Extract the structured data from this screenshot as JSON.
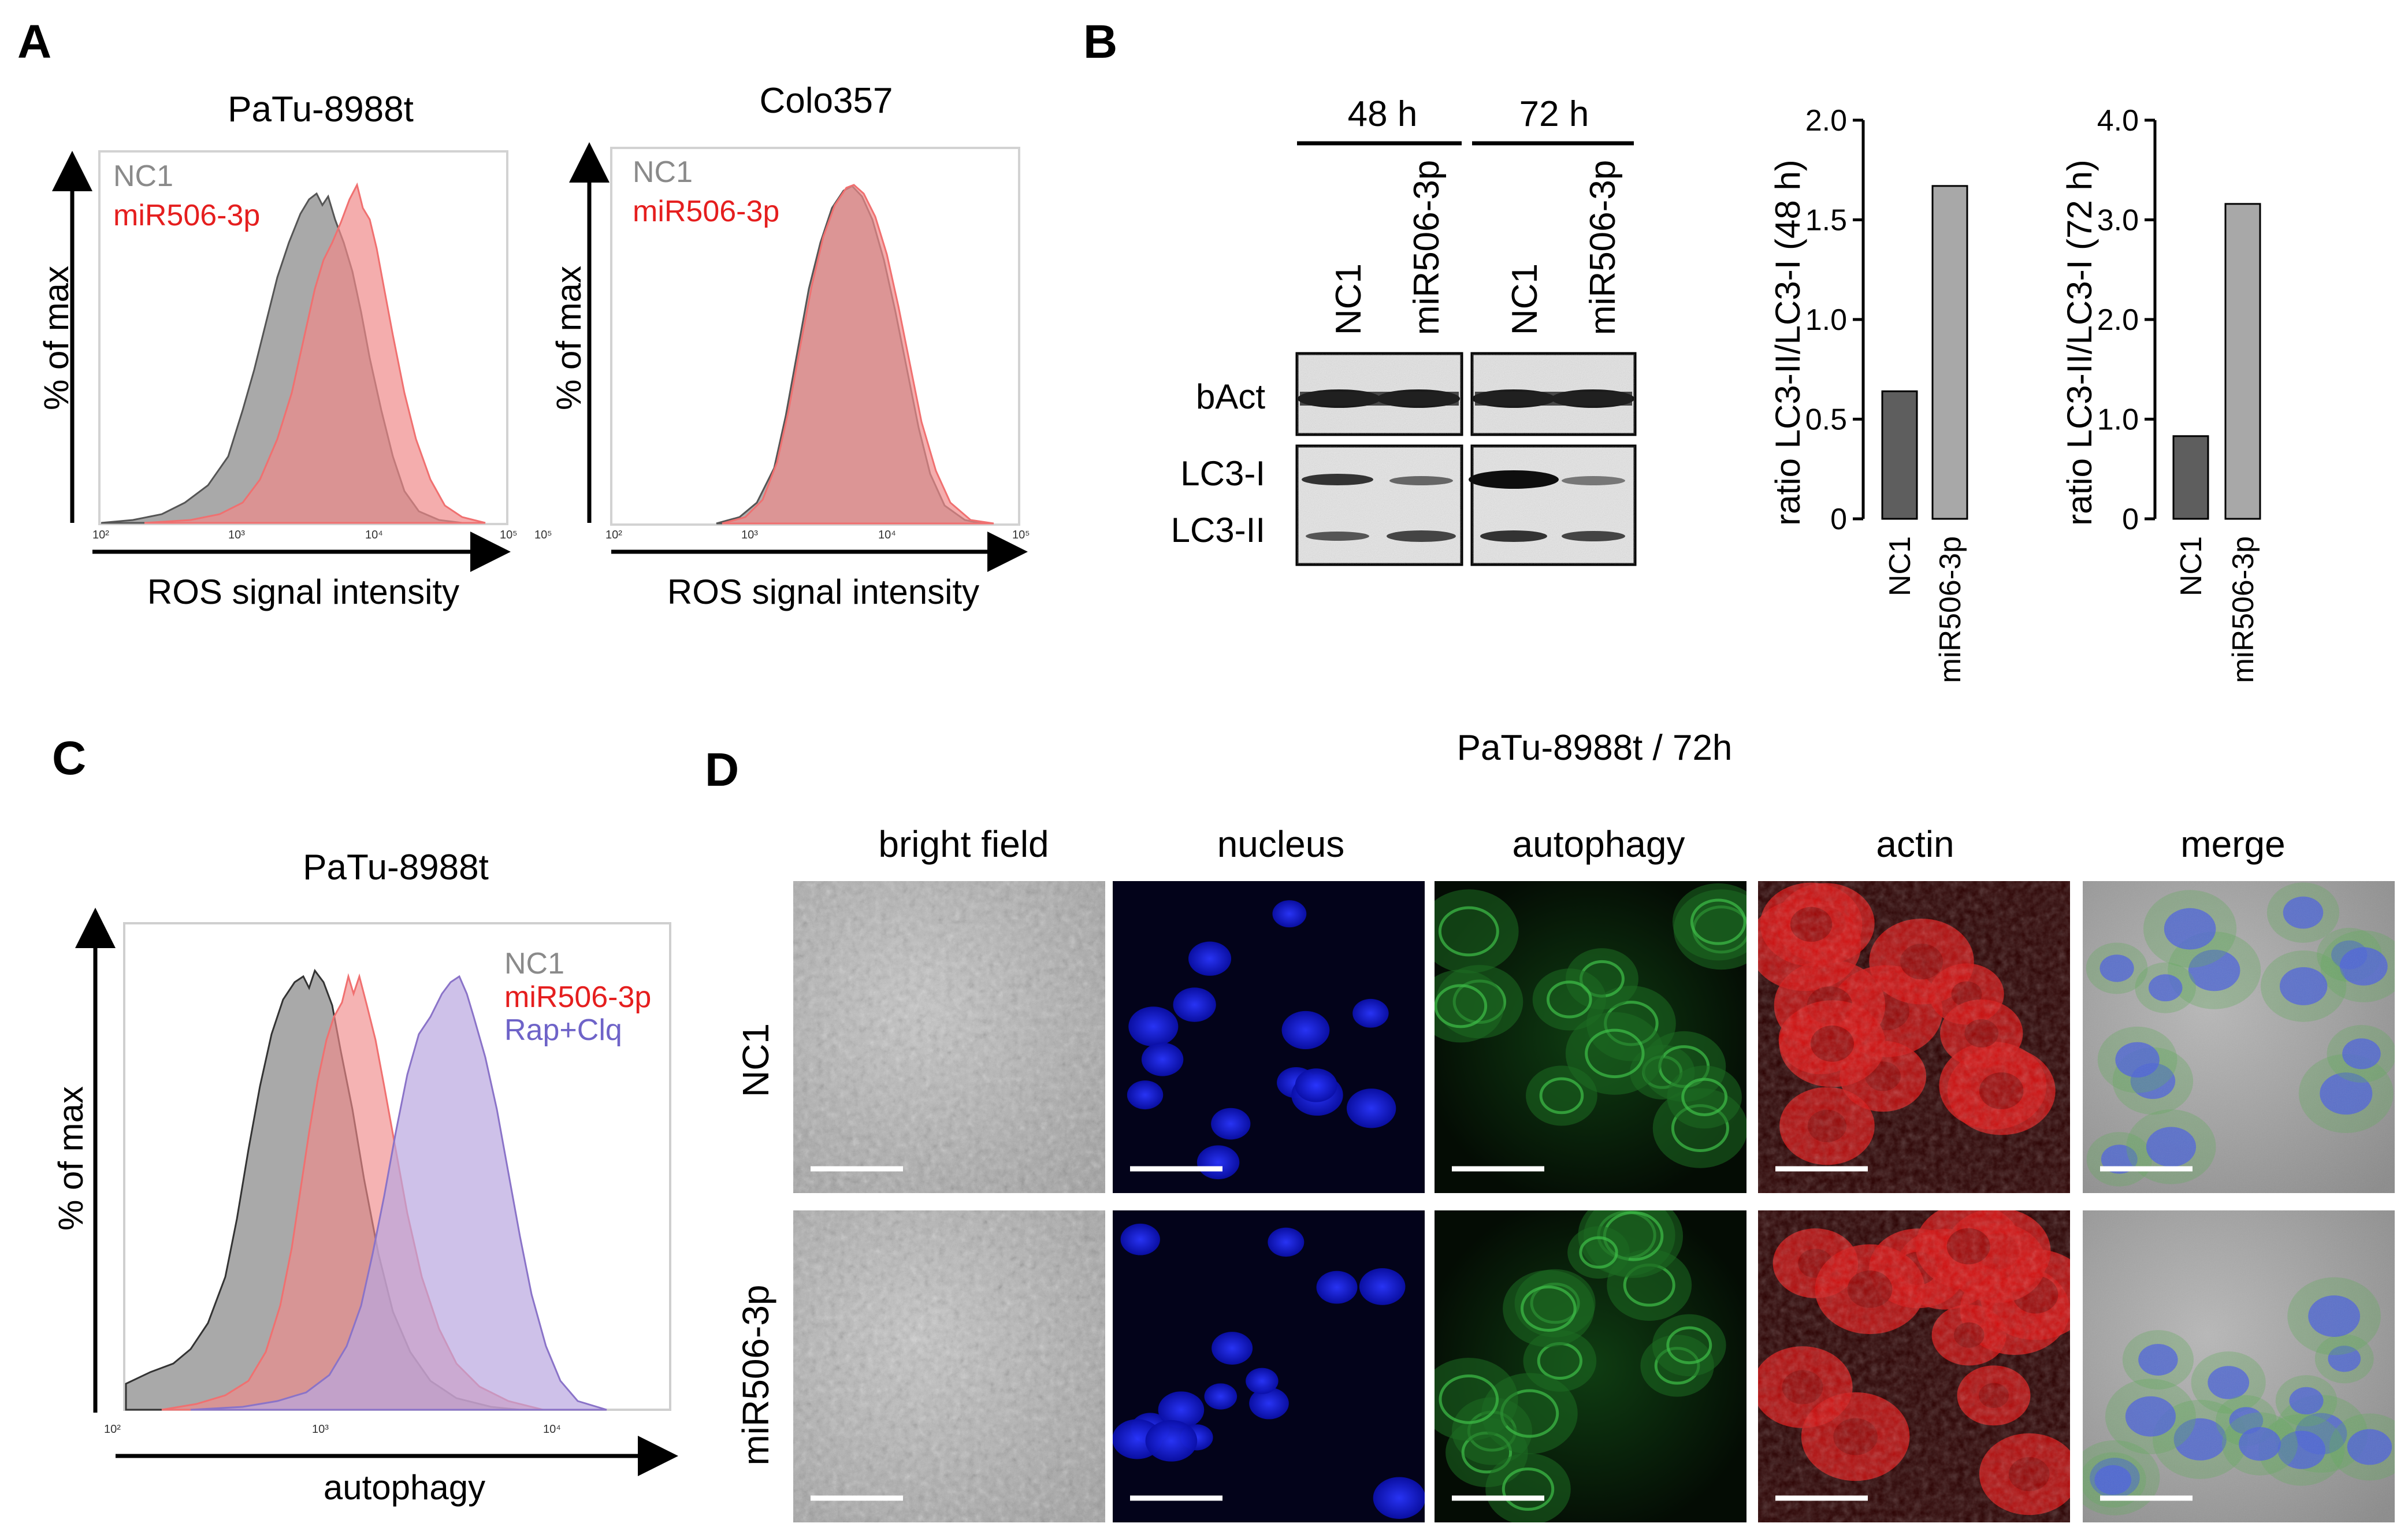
{
  "panels": {
    "A": {
      "letter": "A",
      "left": {
        "title": "PaTu-8988t",
        "ylabel": "% of max",
        "xlabel": "ROS signal intensity",
        "legend": [
          "NC1",
          "miR506-3p"
        ],
        "ticks": [
          "10²",
          "10³",
          "10⁴",
          "10⁵"
        ]
      },
      "right": {
        "title": "Colo357",
        "ylabel": "% of max",
        "xlabel": "ROS signal intensity",
        "legend": [
          "NC1",
          "miR506-3p"
        ],
        "ticks": [
          "10²",
          "10³",
          "10⁴",
          "10⁵"
        ]
      }
    },
    "B": {
      "letter": "B",
      "timepoints": [
        "48 h",
        "72 h"
      ],
      "lanes": [
        "NC1",
        "miR506-3p",
        "NC1",
        "miR506-3p"
      ],
      "bands": [
        "bAct",
        "LC3-I",
        "LC3-II"
      ]
    },
    "C": {
      "letter": "C",
      "title": "PaTu-8988t",
      "ylabel": "% of max",
      "xlabel": "autophagy",
      "legend": [
        "NC1",
        "miR506-3p",
        "Rap+Clq"
      ],
      "ticks": [
        "10²",
        "10³",
        "10⁴"
      ]
    },
    "D": {
      "letter": "D",
      "title": "PaTu-8988t / 72h",
      "columns": [
        "bright field",
        "nucleus",
        "autophagy",
        "actin",
        "merge"
      ],
      "rows": [
        "NC1",
        "miR506-3p"
      ]
    }
  },
  "colors": {
    "nc1_fill": "#9a9a9a",
    "mir_fill": "#f08a8a",
    "mir_text": "#e51e1e",
    "nc1_text": "#8a8a8a",
    "rap_fill": "#b9a6e0",
    "rap_text": "#6e63c8",
    "bar_dark": "#5e5e5e",
    "bar_light": "#a8a8a8"
  },
  "chart_data": [
    {
      "type": "bar",
      "title": "",
      "ylabel": "ratio LC3-II/LC3-I (48 h)",
      "categories": [
        "NC1",
        "miR506-3p"
      ],
      "values": [
        0.64,
        1.67
      ],
      "ylim": [
        0,
        2.0
      ],
      "yticks": [
        "0",
        "0.5",
        "1.0",
        "1.5",
        "2.0"
      ],
      "ytick_values": [
        0,
        0.5,
        1.0,
        1.5,
        2.0
      ]
    },
    {
      "type": "bar",
      "title": "",
      "ylabel": "ratio LC3-II/LC3-I (72 h)",
      "categories": [
        "NC1",
        "miR506-3p"
      ],
      "values": [
        0.83,
        3.16
      ],
      "ylim": [
        0,
        4.0
      ],
      "yticks": [
        "0",
        "1.0",
        "2.0",
        "3.0",
        "4.0"
      ],
      "ytick_values": [
        0,
        1.0,
        2.0,
        3.0,
        4.0
      ]
    }
  ]
}
